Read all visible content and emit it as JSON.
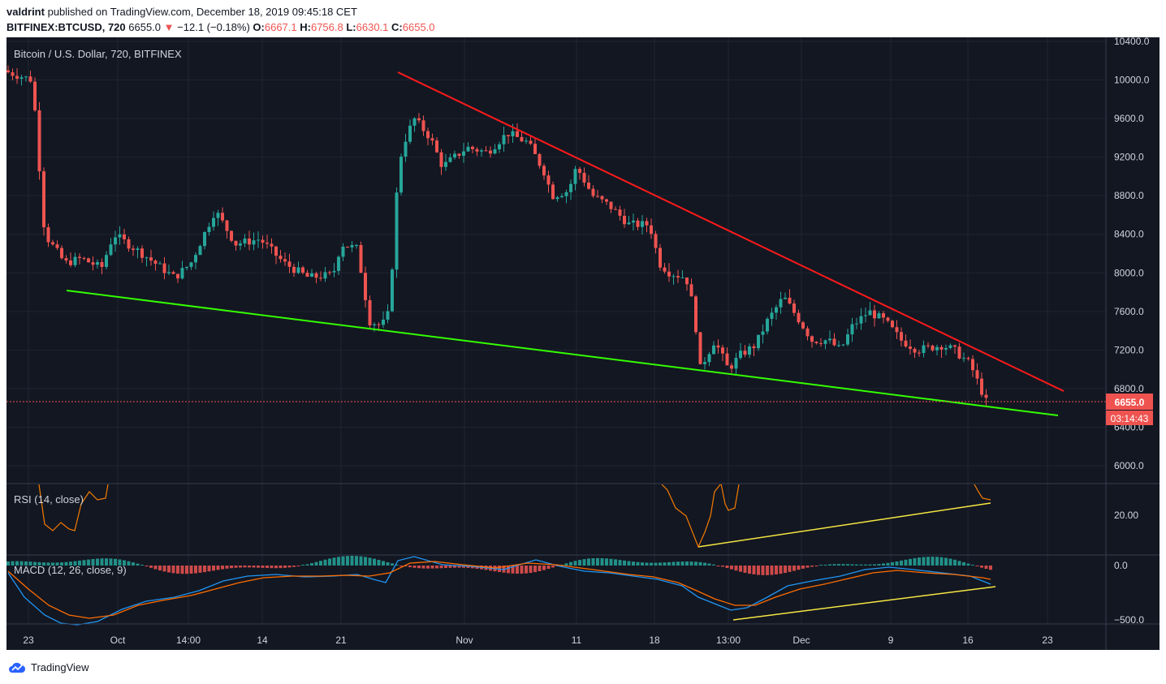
{
  "header": {
    "publisher": "valdrint",
    "published_text": "published on TradingView.com, December 18, 2019 09:45:18 CET",
    "symbol": "BITFINEX:BTCUSD, 720",
    "last": "6655.0",
    "change_arrow": "▼",
    "change": "−12.1 (−0.18%)",
    "o_label": "O:",
    "o_val": "6667.1",
    "h_label": "H:",
    "h_val": "6756.8",
    "l_label": "L:",
    "l_val": "6630.1",
    "c_label": "C:",
    "c_val": "6655.0"
  },
  "chart": {
    "legend": "Bitcoin / U.S. Dollar, 720, BITFINEX",
    "price_ticks": [
      "10400.0",
      "10000.0",
      "9600.0",
      "9200.0",
      "8800.0",
      "8400.0",
      "8000.0",
      "7600.0",
      "7200.0",
      "6800.0",
      "6400.0",
      "6000.0"
    ],
    "last_price_label": "6655.0",
    "countdown": "03:14:43",
    "x_ticks": [
      "23",
      "Oct",
      "14:00",
      "14",
      "21",
      "Nov",
      "11",
      "18",
      "13:00",
      "Dec",
      "9",
      "16",
      "23"
    ],
    "rsi_legend": "RSI (14, close)",
    "rsi_tick": "20.00",
    "macd_legend": "MACD (12, 26, close, 9)",
    "macd_ticks": [
      "0.0",
      "−500.0"
    ],
    "colors": {
      "background": "#131722",
      "up": "#26a69a",
      "down": "#ef5350",
      "resistance": "#ff1a1a",
      "support": "#33ff00",
      "divergence": "#f5e642",
      "rsi": "#f57c00",
      "macd": "#2196f3",
      "signal": "#ff6d00"
    }
  },
  "footer": {
    "brand": "TradingView"
  }
}
